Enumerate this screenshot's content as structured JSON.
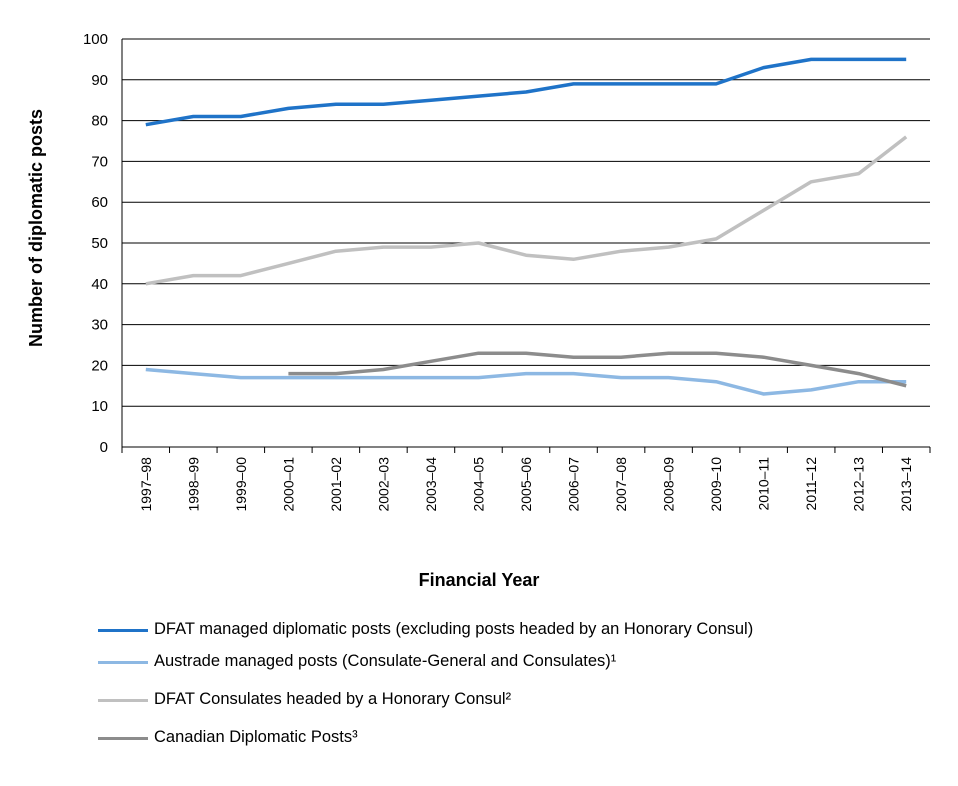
{
  "chart_data": {
    "type": "line",
    "xlabel": "Financial Year",
    "ylabel": "Number of diplomatic posts",
    "ylim": [
      0,
      100
    ],
    "yticks": [
      0,
      10,
      20,
      30,
      40,
      50,
      60,
      70,
      80,
      90,
      100
    ],
    "grid": true,
    "legend_position": "bottom",
    "categories": [
      "1997–98",
      "1998–99",
      "1999–00",
      "2000–01",
      "2001–02",
      "2002–03",
      "2003–04",
      "2004–05",
      "2005–06",
      "2006–07",
      "2007–08",
      "2008–09",
      "2009–10",
      "2010–11",
      "2011–12",
      "2012–13",
      "2013–14"
    ],
    "series": [
      {
        "name": "DFAT managed diplomatic posts (excluding posts headed by an Honorary Consul)",
        "color": "#1F73C8",
        "values": [
          79,
          81,
          81,
          83,
          84,
          84,
          85,
          86,
          87,
          89,
          89,
          89,
          89,
          93,
          95,
          95,
          95
        ]
      },
      {
        "name": "Austrade managed posts (Consulate-General and Consulates)¹",
        "color": "#8DB8E3",
        "values": [
          19,
          18,
          17,
          17,
          17,
          17,
          17,
          17,
          18,
          18,
          17,
          17,
          16,
          13,
          14,
          16,
          16
        ]
      },
      {
        "name": "DFAT Consulates headed by a Honorary Consul²",
        "color": "#C0C0C0",
        "values": [
          40,
          42,
          42,
          45,
          48,
          49,
          49,
          50,
          47,
          46,
          48,
          49,
          51,
          58,
          65,
          67,
          76
        ]
      },
      {
        "name": "Canadian Diplomatic Posts³",
        "color": "#8C8C8C",
        "values": [
          null,
          null,
          null,
          18,
          18,
          19,
          21,
          23,
          23,
          22,
          22,
          23,
          23,
          22,
          20,
          18,
          15
        ]
      }
    ]
  }
}
